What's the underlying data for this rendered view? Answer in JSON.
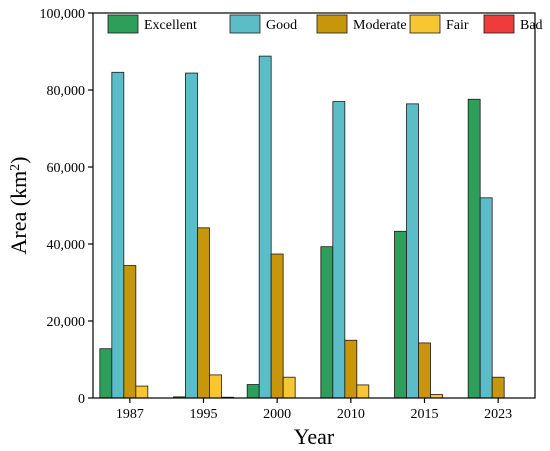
{
  "chart_data": {
    "type": "bar",
    "xlabel": "Year",
    "ylabel": "Area (km",
    "ylabel_sup": "2",
    "ylabel_suffix": ")",
    "ylim": [
      0,
      100000
    ],
    "yticks": [
      0,
      20000,
      40000,
      60000,
      80000,
      100000
    ],
    "ytick_labels": [
      "0",
      "20,000",
      "40,000",
      "60,000",
      "80,000",
      "100,000"
    ],
    "legend_position": "top",
    "categories": [
      "1987",
      "1995",
      "2000",
      "2010",
      "2015",
      "2023"
    ],
    "series": [
      {
        "name": "Excellent",
        "color": "#2e9e5b",
        "values": [
          12800,
          300,
          3500,
          39300,
          43300,
          77600
        ]
      },
      {
        "name": "Good",
        "color": "#5bbdc8",
        "values": [
          84600,
          84400,
          88800,
          77000,
          76400,
          52000
        ]
      },
      {
        "name": "Moderate",
        "color": "#c8960a",
        "values": [
          34400,
          44200,
          37400,
          15000,
          14300,
          5400
        ]
      },
      {
        "name": "Fair",
        "color": "#f8c630",
        "values": [
          3100,
          6000,
          5400,
          3400,
          900,
          0
        ]
      },
      {
        "name": "Bad",
        "color": "#ef3b3b",
        "values": [
          0,
          200,
          0,
          0,
          0,
          0
        ]
      }
    ]
  }
}
